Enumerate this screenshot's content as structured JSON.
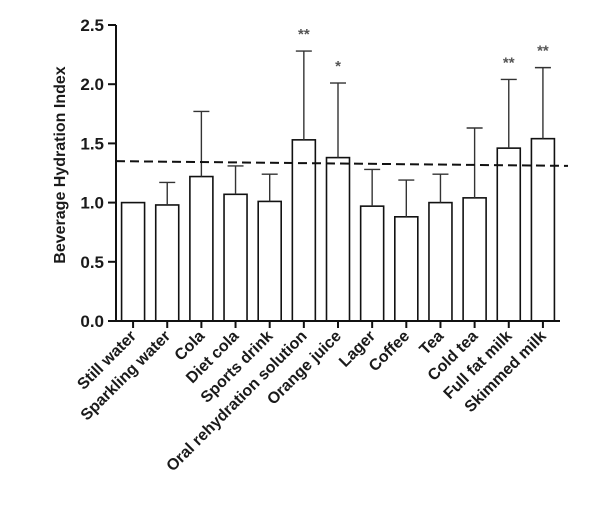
{
  "chart_data": {
    "type": "bar",
    "ylabel": "Beverage Hydration Index",
    "ylim": [
      0,
      2.5
    ],
    "yticks": [
      0.0,
      0.5,
      1.0,
      1.5,
      2.0,
      2.5
    ],
    "ytick_labels": [
      "0.0",
      "0.5",
      "1.0",
      "1.5",
      "2.0",
      "2.5"
    ],
    "categories": [
      "Still water",
      "Sparkling water",
      "Cola",
      "Diet cola",
      "Sports drink",
      "Oral rehydration solution",
      "Orange juice",
      "Lager",
      "Coffee",
      "Tea",
      "Cold tea",
      "Full fat milk",
      "Skimmed milk"
    ],
    "values": [
      1.0,
      0.98,
      1.22,
      1.07,
      1.01,
      1.53,
      1.38,
      0.97,
      0.88,
      1.0,
      1.04,
      1.46,
      1.54
    ],
    "error_upper": [
      0.0,
      0.19,
      0.55,
      0.24,
      0.23,
      0.75,
      0.63,
      0.31,
      0.31,
      0.24,
      0.59,
      0.58,
      0.6
    ],
    "significance": [
      "",
      "",
      "",
      "",
      "",
      "**",
      "*",
      "",
      "",
      "",
      "",
      "**",
      "**"
    ],
    "reference_line": {
      "style": "dashed",
      "y_start": 1.35,
      "y_end": 1.31
    },
    "grid": false,
    "legend": "none"
  }
}
